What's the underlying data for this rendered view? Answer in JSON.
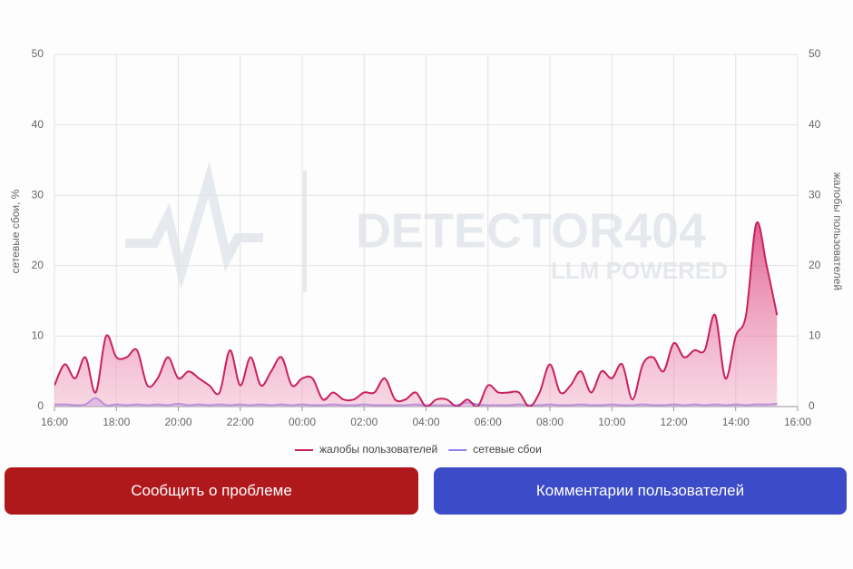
{
  "chart_data": {
    "type": "line",
    "watermark": {
      "title": "DETECTOR404",
      "subtitle": "LLM POWERED"
    },
    "y_label": "сетевые сбои, %",
    "y2_label": "жалобы пользователей",
    "x": [
      "16:00",
      "16:20",
      "16:40",
      "17:00",
      "17:20",
      "17:40",
      "18:00",
      "18:20",
      "18:40",
      "19:00",
      "19:20",
      "19:40",
      "20:00",
      "20:20",
      "20:40",
      "21:00",
      "21:20",
      "21:40",
      "22:00",
      "22:20",
      "22:40",
      "23:00",
      "23:20",
      "23:40",
      "00:00",
      "00:20",
      "00:40",
      "01:00",
      "01:20",
      "01:40",
      "02:00",
      "02:20",
      "02:40",
      "03:00",
      "03:20",
      "03:40",
      "04:00",
      "04:20",
      "04:40",
      "05:00",
      "05:20",
      "05:40",
      "06:00",
      "06:20",
      "06:40",
      "07:00",
      "07:20",
      "07:40",
      "08:00",
      "08:20",
      "08:40",
      "09:00",
      "09:20",
      "09:40",
      "10:00",
      "10:20",
      "10:40",
      "11:00",
      "11:20",
      "11:40",
      "12:00",
      "12:20",
      "12:40",
      "13:00",
      "13:20",
      "13:40",
      "14:00",
      "14:20",
      "14:40",
      "15:00",
      "15:20"
    ],
    "series": [
      {
        "name": "жалобы пользователей",
        "color": "#c9215f",
        "axis": "y2",
        "values": [
          3,
          6,
          4,
          7,
          2,
          10,
          7,
          7,
          8,
          3,
          4,
          7,
          4,
          5,
          4,
          3,
          2,
          8,
          3,
          7,
          3,
          5,
          7,
          3,
          4,
          4,
          1,
          2,
          1,
          1,
          2,
          2,
          4,
          1,
          1,
          2,
          0,
          1,
          1,
          0,
          1,
          0,
          3,
          2,
          2,
          2,
          0,
          2,
          6,
          2,
          3,
          5,
          2,
          5,
          4,
          6,
          1,
          6,
          7,
          5,
          9,
          7,
          8,
          8,
          13,
          4,
          10,
          13,
          26,
          20,
          13
        ]
      },
      {
        "name": "сетевые сбои",
        "color": "#8f80ea",
        "values": [
          0.3,
          0.3,
          0.2,
          0.3,
          1.2,
          0.2,
          0.3,
          0.2,
          0.3,
          0.2,
          0.3,
          0.2,
          0.4,
          0.2,
          0.3,
          0.2,
          0.3,
          0.2,
          0.3,
          0.2,
          0.3,
          0.2,
          0.3,
          0.2,
          0.3,
          0.2,
          0.2,
          0.3,
          0.2,
          0.2,
          0.3,
          0.2,
          0.2,
          0.2,
          0.2,
          0.3,
          0.2,
          0.2,
          0.2,
          0.2,
          0.6,
          0.3,
          0.2,
          0.2,
          0.2,
          0.3,
          0.2,
          0.2,
          0.3,
          0.2,
          0.2,
          0.3,
          0.2,
          0.2,
          0.3,
          0.2,
          0.2,
          0.3,
          0.2,
          0.2,
          0.3,
          0.2,
          0.3,
          0.2,
          0.3,
          0.2,
          0.3,
          0.2,
          0.3,
          0.3,
          0.4
        ]
      }
    ],
    "ylim": [
      0,
      50
    ],
    "yticks": [
      0,
      10,
      20,
      30,
      40,
      50
    ],
    "y2lim": [
      0,
      50
    ],
    "y2ticks": [
      0,
      10,
      20,
      30,
      40,
      50
    ],
    "xticks": [
      "16:00",
      "18:00",
      "20:00",
      "22:00",
      "00:00",
      "02:00",
      "04:00",
      "06:00",
      "08:00",
      "10:00",
      "12:00",
      "14:00",
      "16:00"
    ],
    "grid": true,
    "legend": "bottom"
  },
  "buttons": {
    "report": "Сообщить о проблеме",
    "comments": "Комментарии пользователей"
  }
}
